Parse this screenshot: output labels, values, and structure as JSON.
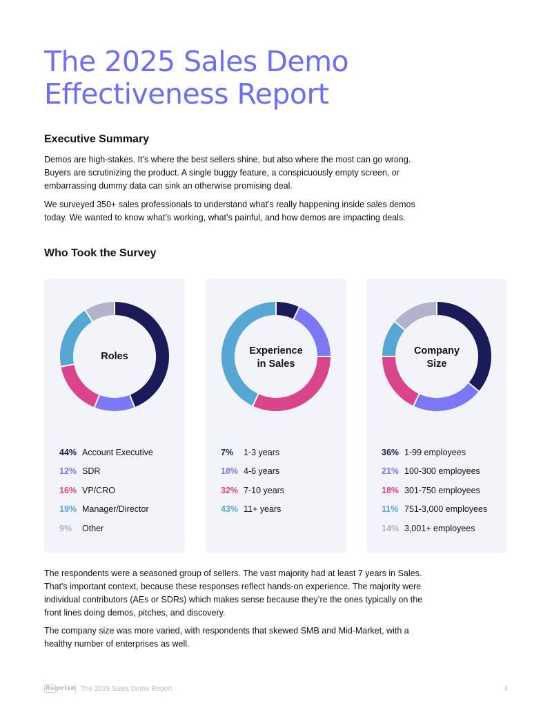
{
  "title": "The 2025 Sales Demo Effectiveness Report",
  "executive_summary": {
    "heading": "Executive Summary",
    "p1": "Demos are high-stakes. It’s where the best sellers shine, but also where the most can go wrong. Buyers are scrutinizing the product. A single buggy feature, a conspicuously empty screen, or embarrassing dummy data can sink an otherwise promising deal.",
    "p2": "We surveyed 350+ sales professionals to understand what’s really happening inside sales demos today. We wanted to know what’s working, what’s painful, and how demos are impacting deals."
  },
  "survey": {
    "heading": "Who Took the Survey"
  },
  "chart_data": [
    {
      "type": "pie",
      "center_label": [
        "Roles"
      ],
      "slices": [
        {
          "percent": "44%",
          "value": 44,
          "label": "Account Executive",
          "color": "#1c1b5a"
        },
        {
          "percent": "12%",
          "value": 12,
          "label": "SDR",
          "color": "#7b78f6"
        },
        {
          "percent": "16%",
          "value": 16,
          "label": "VP/CRO",
          "color": "#d9448b"
        },
        {
          "percent": "19%",
          "value": 19,
          "label": "Manager/Director",
          "color": "#56a7d4"
        },
        {
          "percent": "9%",
          "value": 9,
          "label": "Other",
          "color": "#b2b3ca"
        }
      ]
    },
    {
      "type": "pie",
      "center_label": [
        "Experience",
        "in Sales"
      ],
      "slices": [
        {
          "percent": "7%",
          "value": 7,
          "label": "1-3 years",
          "color": "#1c1b5a"
        },
        {
          "percent": "18%",
          "value": 18,
          "label": "4-6 years",
          "color": "#7b78f6"
        },
        {
          "percent": "32%",
          "value": 32,
          "label": "7-10 years",
          "color": "#d9448b"
        },
        {
          "percent": "43%",
          "value": 43,
          "label": "11+ years",
          "color": "#56a7d4"
        }
      ]
    },
    {
      "type": "pie",
      "center_label": [
        "Company",
        "Size"
      ],
      "slices": [
        {
          "percent": "36%",
          "value": 36,
          "label": "1-99 employees",
          "color": "#1c1b5a"
        },
        {
          "percent": "21%",
          "value": 21,
          "label": "100-300 employees",
          "color": "#7b78f6"
        },
        {
          "percent": "18%",
          "value": 18,
          "label": "301-750 employees",
          "color": "#d9448b"
        },
        {
          "percent": "11%",
          "value": 11,
          "label": "751-3,000 employees",
          "color": "#56a7d4"
        },
        {
          "percent": "14%",
          "value": 14,
          "label": "3,001+ employees",
          "color": "#b2b3ca"
        }
      ]
    }
  ],
  "analysis": {
    "p1": "The respondents were a seasoned group of sellers. The vast majority had at least 7 years in Sales. That's important context, because these responses reflect hands-on experience. The majority were individual contributors (AEs or SDRs) which makes sense because they’re the ones typically on the front lines doing demos, pitches, and discovery.",
    "p2": "The company size was more varied, with respondents that skewed SMB and Mid-Market, with a healthy number of enterprises as well."
  },
  "footer": {
    "logo_text": "Re",
    "logo_suffix": "prise",
    "report_name": "The 2025 Sales Demo Report",
    "page_number": "4"
  }
}
